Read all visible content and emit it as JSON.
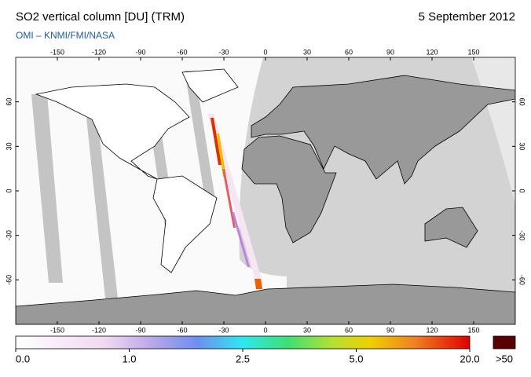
{
  "title": "SO2 vertical column [DU] (TRM)",
  "date": "5 September 2012",
  "subtitle": "OMI  –  KNMI/FMI/NASA",
  "map": {
    "lonlim": [
      -180,
      180
    ],
    "latlim": [
      90,
      -90
    ],
    "lon_ticks": [
      -150,
      -120,
      -90,
      -60,
      -30,
      0,
      30,
      60,
      90,
      120,
      150
    ],
    "lat_ticks": [
      60,
      30,
      0,
      -30,
      -60
    ]
  },
  "colorbar": {
    "ticks": [
      {
        "value": 0,
        "label": "0.0"
      },
      {
        "value": 1,
        "label": "1.0"
      },
      {
        "value": 2.5,
        "label": "2.5"
      },
      {
        "value": 5,
        "label": "5.0"
      },
      {
        "value": 20,
        "label": "20.0"
      }
    ],
    "overflow_label": ">50"
  }
}
